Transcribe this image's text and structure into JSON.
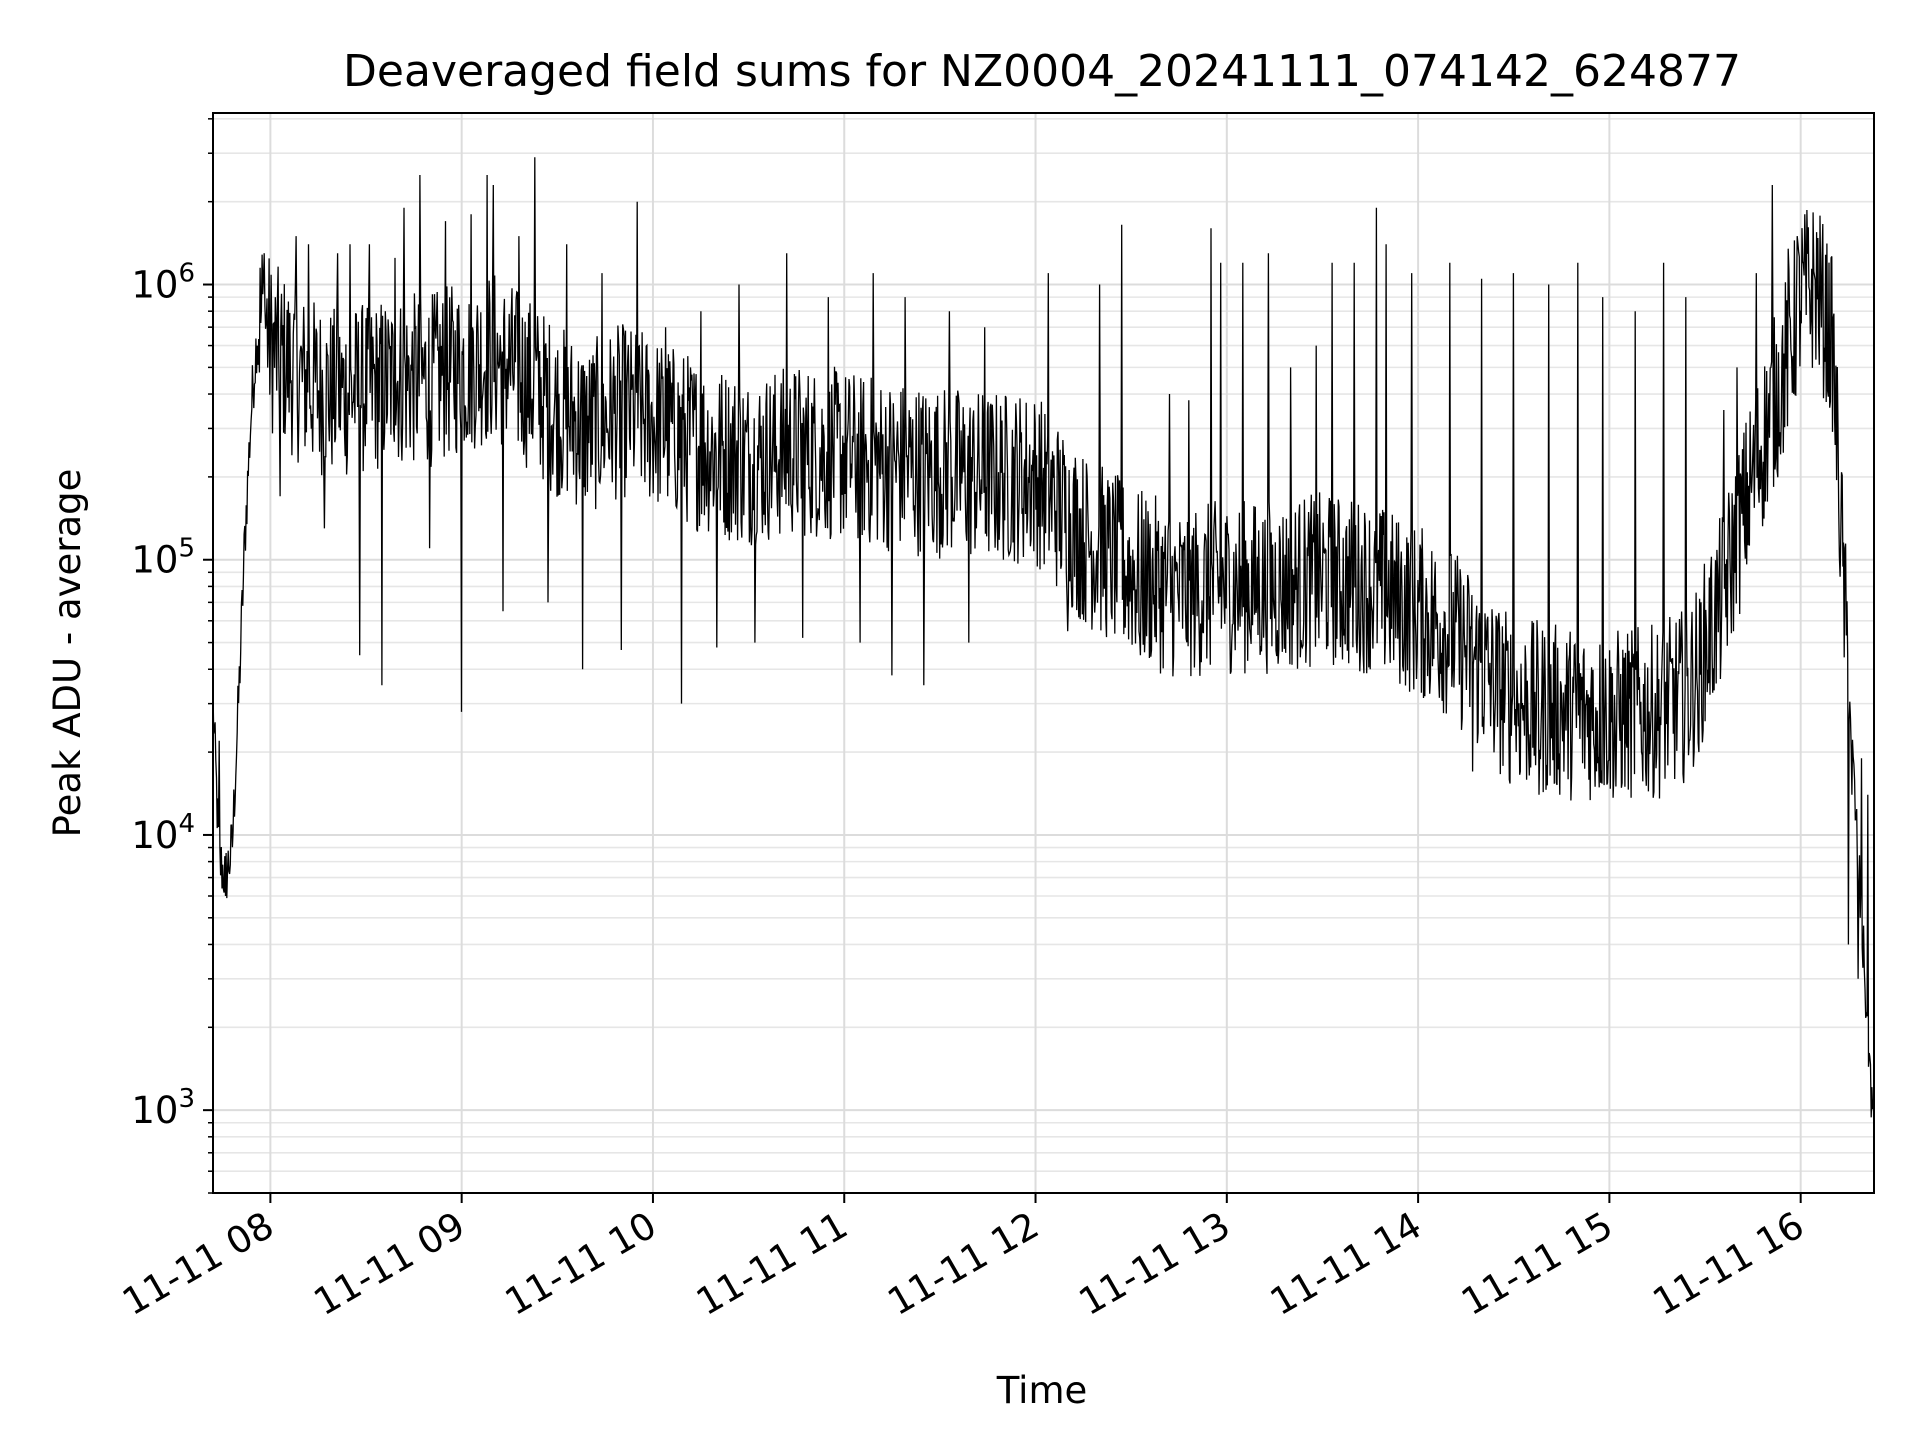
{
  "chart_data": {
    "type": "line",
    "title": "Deaveraged field sums for NZ0004_20241111_074142_624877",
    "xlabel": "Time",
    "ylabel": "Peak ADU - average",
    "yscale": "log",
    "ylim": [
      500,
      4200000
    ],
    "xlim": [
      "2024-11-11 07:42",
      "2024-11-11 16:23"
    ],
    "grid": true,
    "line_color": "#000000",
    "x_ticks": [
      "2024-11-11 08:00",
      "2024-11-11 09:00",
      "2024-11-11 10:00",
      "2024-11-11 11:00",
      "2024-11-11 12:00",
      "2024-11-11 13:00",
      "2024-11-11 14:00",
      "2024-11-11 15:00",
      "2024-11-11 16:00"
    ],
    "x_tick_labels": [
      "11-11 08",
      "11-11 09",
      "11-11 10",
      "11-11 11",
      "11-11 12",
      "11-11 13",
      "11-11 14",
      "11-11 15",
      "11-11 16"
    ],
    "y_ticks": [
      1000,
      10000,
      100000,
      1000000
    ],
    "y_tick_labels": [
      {
        "base": "10",
        "exp": "3"
      },
      {
        "base": "10",
        "exp": "4"
      },
      {
        "base": "10",
        "exp": "5"
      },
      {
        "base": "10",
        "exp": "6"
      }
    ],
    "series": [
      {
        "x": [
          "2024-11-11 07:42",
          "2024-11-11 07:44",
          "2024-11-11 07:46",
          "2024-11-11 07:48",
          "2024-11-11 07:50",
          "2024-11-11 07:52",
          "2024-11-11 07:54",
          "2024-11-11 07:56",
          "2024-11-11 07:58",
          "2024-11-11 08:00",
          "2024-11-11 08:10",
          "2024-11-11 08:20",
          "2024-11-11 08:30",
          "2024-11-11 08:40",
          "2024-11-11 08:50",
          "2024-11-11 09:00",
          "2024-11-11 09:10",
          "2024-11-11 09:20",
          "2024-11-11 09:30",
          "2024-11-11 09:40",
          "2024-11-11 09:50",
          "2024-11-11 10:00",
          "2024-11-11 10:15",
          "2024-11-11 10:30",
          "2024-11-11 10:45",
          "2024-11-11 11:00",
          "2024-11-11 11:15",
          "2024-11-11 11:30",
          "2024-11-11 11:45",
          "2024-11-11 12:00",
          "2024-11-11 12:15",
          "2024-11-11 12:30",
          "2024-11-11 12:45",
          "2024-11-11 13:00",
          "2024-11-11 13:15",
          "2024-11-11 13:30",
          "2024-11-11 13:45",
          "2024-11-11 14:00",
          "2024-11-11 14:10",
          "2024-11-11 14:20",
          "2024-11-11 14:30",
          "2024-11-11 14:45",
          "2024-11-11 15:00",
          "2024-11-11 15:15",
          "2024-11-11 15:25",
          "2024-11-11 15:35",
          "2024-11-11 15:45",
          "2024-11-11 15:55",
          "2024-11-11 16:00",
          "2024-11-11 16:05",
          "2024-11-11 16:10",
          "2024-11-11 16:14",
          "2024-11-11 16:18",
          "2024-11-11 16:23"
        ],
        "values": [
          30000,
          8000,
          7000,
          9000,
          30000,
          120000,
          350000,
          700000,
          800000,
          600000,
          450000,
          400000,
          420000,
          450000,
          450000,
          500000,
          550000,
          450000,
          350000,
          300000,
          350000,
          320000,
          260000,
          230000,
          250000,
          240000,
          220000,
          210000,
          200000,
          200000,
          120000,
          90000,
          75000,
          80000,
          80000,
          85000,
          80000,
          65000,
          55000,
          40000,
          30000,
          28000,
          27000,
          28000,
          33000,
          70000,
          200000,
          500000,
          900000,
          1000000,
          600000,
          60000,
          8000,
          800
        ],
        "spikes": [
          [
            "2024-11-11 07:42",
            34000
          ],
          [
            "2024-11-11 07:44",
            22000
          ],
          [
            "2024-11-11 07:46",
            6000
          ],
          [
            "2024-11-11 07:58",
            1300000
          ],
          [
            "2024-11-11 08:03",
            170000
          ],
          [
            "2024-11-11 08:08",
            1500000
          ],
          [
            "2024-11-11 08:12",
            1400000
          ],
          [
            "2024-11-11 08:17",
            130000
          ],
          [
            "2024-11-11 08:21",
            1300000
          ],
          [
            "2024-11-11 08:25",
            1400000
          ],
          [
            "2024-11-11 08:28",
            45000
          ],
          [
            "2024-11-11 08:31",
            1400000
          ],
          [
            "2024-11-11 08:35",
            35000
          ],
          [
            "2024-11-11 08:39",
            1250000
          ],
          [
            "2024-11-11 08:42",
            1900000
          ],
          [
            "2024-11-11 08:47",
            2500000
          ],
          [
            "2024-11-11 08:50",
            110000
          ],
          [
            "2024-11-11 08:55",
            1700000
          ],
          [
            "2024-11-11 09:00",
            28000
          ],
          [
            "2024-11-11 09:03",
            1800000
          ],
          [
            "2024-11-11 09:08",
            2500000
          ],
          [
            "2024-11-11 09:10",
            2300000
          ],
          [
            "2024-11-11 09:13",
            65000
          ],
          [
            "2024-11-11 09:18",
            1500000
          ],
          [
            "2024-11-11 09:23",
            2900000
          ],
          [
            "2024-11-11 09:27",
            70000
          ],
          [
            "2024-11-11 09:33",
            1400000
          ],
          [
            "2024-11-11 09:38",
            40000
          ],
          [
            "2024-11-11 09:44",
            1100000
          ],
          [
            "2024-11-11 09:50",
            47000
          ],
          [
            "2024-11-11 09:55",
            2000000
          ],
          [
            "2024-11-11 10:04",
            700000
          ],
          [
            "2024-11-11 10:09",
            30000
          ],
          [
            "2024-11-11 10:15",
            800000
          ],
          [
            "2024-11-11 10:20",
            48000
          ],
          [
            "2024-11-11 10:27",
            1000000
          ],
          [
            "2024-11-11 10:32",
            50000
          ],
          [
            "2024-11-11 10:42",
            1300000
          ],
          [
            "2024-11-11 10:47",
            52000
          ],
          [
            "2024-11-11 10:55",
            900000
          ],
          [
            "2024-11-11 11:05",
            50000
          ],
          [
            "2024-11-11 11:09",
            1100000
          ],
          [
            "2024-11-11 11:15",
            38000
          ],
          [
            "2024-11-11 11:19",
            900000
          ],
          [
            "2024-11-11 11:25",
            35000
          ],
          [
            "2024-11-11 11:33",
            800000
          ],
          [
            "2024-11-11 11:39",
            50000
          ],
          [
            "2024-11-11 11:44",
            700000
          ],
          [
            "2024-11-11 12:04",
            1100000
          ],
          [
            "2024-11-11 12:10",
            55000
          ],
          [
            "2024-11-11 12:20",
            1000000
          ],
          [
            "2024-11-11 12:27",
            1650000
          ],
          [
            "2024-11-11 12:33",
            45000
          ],
          [
            "2024-11-11 12:42",
            400000
          ],
          [
            "2024-11-11 12:48",
            380000
          ],
          [
            "2024-11-11 12:55",
            1600000
          ],
          [
            "2024-11-11 12:58",
            1200000
          ],
          [
            "2024-11-11 13:05",
            1200000
          ],
          [
            "2024-11-11 13:13",
            1300000
          ],
          [
            "2024-11-11 13:20",
            500000
          ],
          [
            "2024-11-11 13:28",
            600000
          ],
          [
            "2024-11-11 13:33",
            1200000
          ],
          [
            "2024-11-11 13:40",
            1200000
          ],
          [
            "2024-11-11 13:47",
            1900000
          ],
          [
            "2024-11-11 13:50",
            1400000
          ],
          [
            "2024-11-11 13:58",
            1100000
          ],
          [
            "2024-11-11 14:10",
            1200000
          ],
          [
            "2024-11-11 14:17",
            17000
          ],
          [
            "2024-11-11 14:20",
            1050000
          ],
          [
            "2024-11-11 14:30",
            1100000
          ],
          [
            "2024-11-11 14:38",
            14000
          ],
          [
            "2024-11-11 14:41",
            1000000
          ],
          [
            "2024-11-11 14:50",
            1200000
          ],
          [
            "2024-11-11 14:58",
            900000
          ],
          [
            "2024-11-11 15:02",
            15000
          ],
          [
            "2024-11-11 15:08",
            800000
          ],
          [
            "2024-11-11 15:17",
            1200000
          ],
          [
            "2024-11-11 15:24",
            900000
          ],
          [
            "2024-11-11 15:28",
            20000
          ],
          [
            "2024-11-11 15:36",
            350000
          ],
          [
            "2024-11-11 15:40",
            500000
          ],
          [
            "2024-11-11 15:46",
            1100000
          ],
          [
            "2024-11-11 15:51",
            2300000
          ],
          [
            "2024-11-11 15:56",
            1350000
          ],
          [
            "2024-11-11 15:59",
            1500000
          ],
          [
            "2024-11-11 16:15",
            4000
          ],
          [
            "2024-11-11 16:16",
            14000
          ],
          [
            "2024-11-11 16:18",
            3000
          ],
          [
            "2024-11-11 16:19",
            19000
          ],
          [
            "2024-11-11 16:21",
            14000
          ]
        ]
      }
    ]
  }
}
